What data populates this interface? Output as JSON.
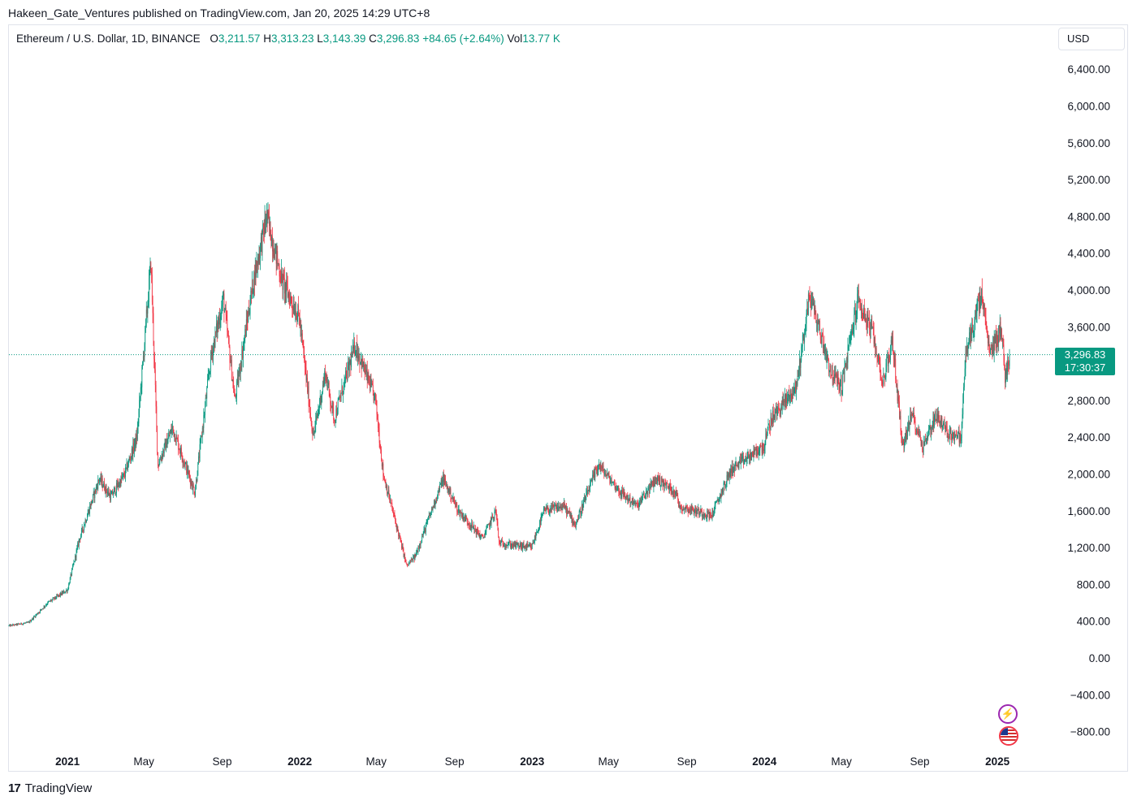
{
  "publish_line": "Hakeen_Gate_Ventures published on TradingView.com, Jan 20, 2025 14:29 UTC+8",
  "legend": {
    "symbol": "Ethereum / U.S. Dollar, 1D, BINANCE",
    "open_label": "O",
    "open": "3,211.57",
    "high_label": "H",
    "high": "3,313.23",
    "low_label": "L",
    "low": "3,143.39",
    "close_label": "C",
    "close": "3,296.83",
    "change": "+84.65 (+2.64%)",
    "vol_label": "Vol",
    "vol": "13.77 K"
  },
  "currency_button": "USD",
  "price_tag": {
    "price": "3,296.83",
    "countdown": "17:30:37"
  },
  "footer": {
    "brand": "TradingView",
    "logo_mark": "17"
  },
  "icons": {
    "spark": "lightning-icon",
    "flag": "us-flag-icon"
  },
  "colors": {
    "up": "#089981",
    "down": "#f23645",
    "last_price_line": "#089981"
  },
  "chart_data": {
    "type": "candlestick",
    "title": "Ethereum / U.S. Dollar, 1D, BINANCE",
    "interval": "1D",
    "last_price": 3296.83,
    "ylim": [
      -1000,
      6600
    ],
    "y_ticks": [
      6400,
      6000,
      5600,
      5200,
      4800,
      4400,
      4000,
      3600,
      3200,
      2800,
      2400,
      2000,
      1600,
      1200,
      800,
      400,
      0,
      -400,
      -800
    ],
    "y_tick_labels": [
      "6,400.00",
      "6,000.00",
      "5,600.00",
      "5,200.00",
      "4,800.00",
      "4,400.00",
      "4,000.00",
      "3,600.00",
      "",
      "2,800.00",
      "2,400.00",
      "2,000.00",
      "1,600.00",
      "1,200.00",
      "800.00",
      "400.00",
      "0.00",
      "−400.00",
      "−800.00"
    ],
    "x_range": [
      "2020-10-01",
      "2025-01-20"
    ],
    "x_ticks": [
      {
        "date": "2021-01-01",
        "label": "2021",
        "bold": true
      },
      {
        "date": "2021-05-01",
        "label": "May",
        "bold": false
      },
      {
        "date": "2021-09-01",
        "label": "Sep",
        "bold": false
      },
      {
        "date": "2022-01-01",
        "label": "2022",
        "bold": true
      },
      {
        "date": "2022-05-01",
        "label": "May",
        "bold": false
      },
      {
        "date": "2022-09-01",
        "label": "Sep",
        "bold": false
      },
      {
        "date": "2023-01-01",
        "label": "2023",
        "bold": true
      },
      {
        "date": "2023-05-01",
        "label": "May",
        "bold": false
      },
      {
        "date": "2023-09-01",
        "label": "Sep",
        "bold": false
      },
      {
        "date": "2024-01-01",
        "label": "2024",
        "bold": true
      },
      {
        "date": "2024-05-01",
        "label": "May",
        "bold": false
      },
      {
        "date": "2024-09-01",
        "label": "Sep",
        "bold": false
      },
      {
        "date": "2025-01-01",
        "label": "2025",
        "bold": true
      }
    ],
    "price_path": [
      [
        "2020-10-01",
        350
      ],
      [
        "2020-11-01",
        385
      ],
      [
        "2020-12-01",
        600
      ],
      [
        "2021-01-01",
        740
      ],
      [
        "2021-01-20",
        1300
      ],
      [
        "2021-02-20",
        1950
      ],
      [
        "2021-03-10",
        1750
      ],
      [
        "2021-04-01",
        2000
      ],
      [
        "2021-04-20",
        2400
      ],
      [
        "2021-05-12",
        4300
      ],
      [
        "2021-05-23",
        2100
      ],
      [
        "2021-06-15",
        2500
      ],
      [
        "2021-07-20",
        1800
      ],
      [
        "2021-08-15",
        3300
      ],
      [
        "2021-09-03",
        3900
      ],
      [
        "2021-09-21",
        2800
      ],
      [
        "2021-10-20",
        4100
      ],
      [
        "2021-11-10",
        4800
      ],
      [
        "2021-12-04",
        4100
      ],
      [
        "2021-12-31",
        3700
      ],
      [
        "2022-01-22",
        2400
      ],
      [
        "2022-02-10",
        3100
      ],
      [
        "2022-02-24",
        2600
      ],
      [
        "2022-03-29",
        3400
      ],
      [
        "2022-04-30",
        2800
      ],
      [
        "2022-05-12",
        2000
      ],
      [
        "2022-06-18",
        1000
      ],
      [
        "2022-07-01",
        1100
      ],
      [
        "2022-08-14",
        1950
      ],
      [
        "2022-09-07",
        1600
      ],
      [
        "2022-10-15",
        1300
      ],
      [
        "2022-11-05",
        1600
      ],
      [
        "2022-11-10",
        1250
      ],
      [
        "2022-12-31",
        1200
      ],
      [
        "2023-01-20",
        1600
      ],
      [
        "2023-02-20",
        1650
      ],
      [
        "2023-03-10",
        1450
      ],
      [
        "2023-04-15",
        2100
      ],
      [
        "2023-05-20",
        1800
      ],
      [
        "2023-06-15",
        1650
      ],
      [
        "2023-07-15",
        1950
      ],
      [
        "2023-08-15",
        1800
      ],
      [
        "2023-08-20",
        1650
      ],
      [
        "2023-10-10",
        1550
      ],
      [
        "2023-11-10",
        2050
      ],
      [
        "2023-12-31",
        2300
      ],
      [
        "2024-01-12",
        2600
      ],
      [
        "2024-02-20",
        2950
      ],
      [
        "2024-03-12",
        3950
      ],
      [
        "2024-04-15",
        3100
      ],
      [
        "2024-05-01",
        2950
      ],
      [
        "2024-05-27",
        3900
      ],
      [
        "2024-06-20",
        3500
      ],
      [
        "2024-07-05",
        3000
      ],
      [
        "2024-07-20",
        3450
      ],
      [
        "2024-08-05",
        2300
      ],
      [
        "2024-08-20",
        2650
      ],
      [
        "2024-09-06",
        2300
      ],
      [
        "2024-09-27",
        2650
      ],
      [
        "2024-10-14",
        2450
      ],
      [
        "2024-11-05",
        2400
      ],
      [
        "2024-11-12",
        3300
      ],
      [
        "2024-12-07",
        3950
      ],
      [
        "2024-12-20",
        3300
      ],
      [
        "2025-01-07",
        3600
      ],
      [
        "2025-01-13",
        3050
      ],
      [
        "2025-01-20",
        3296.83
      ]
    ]
  }
}
